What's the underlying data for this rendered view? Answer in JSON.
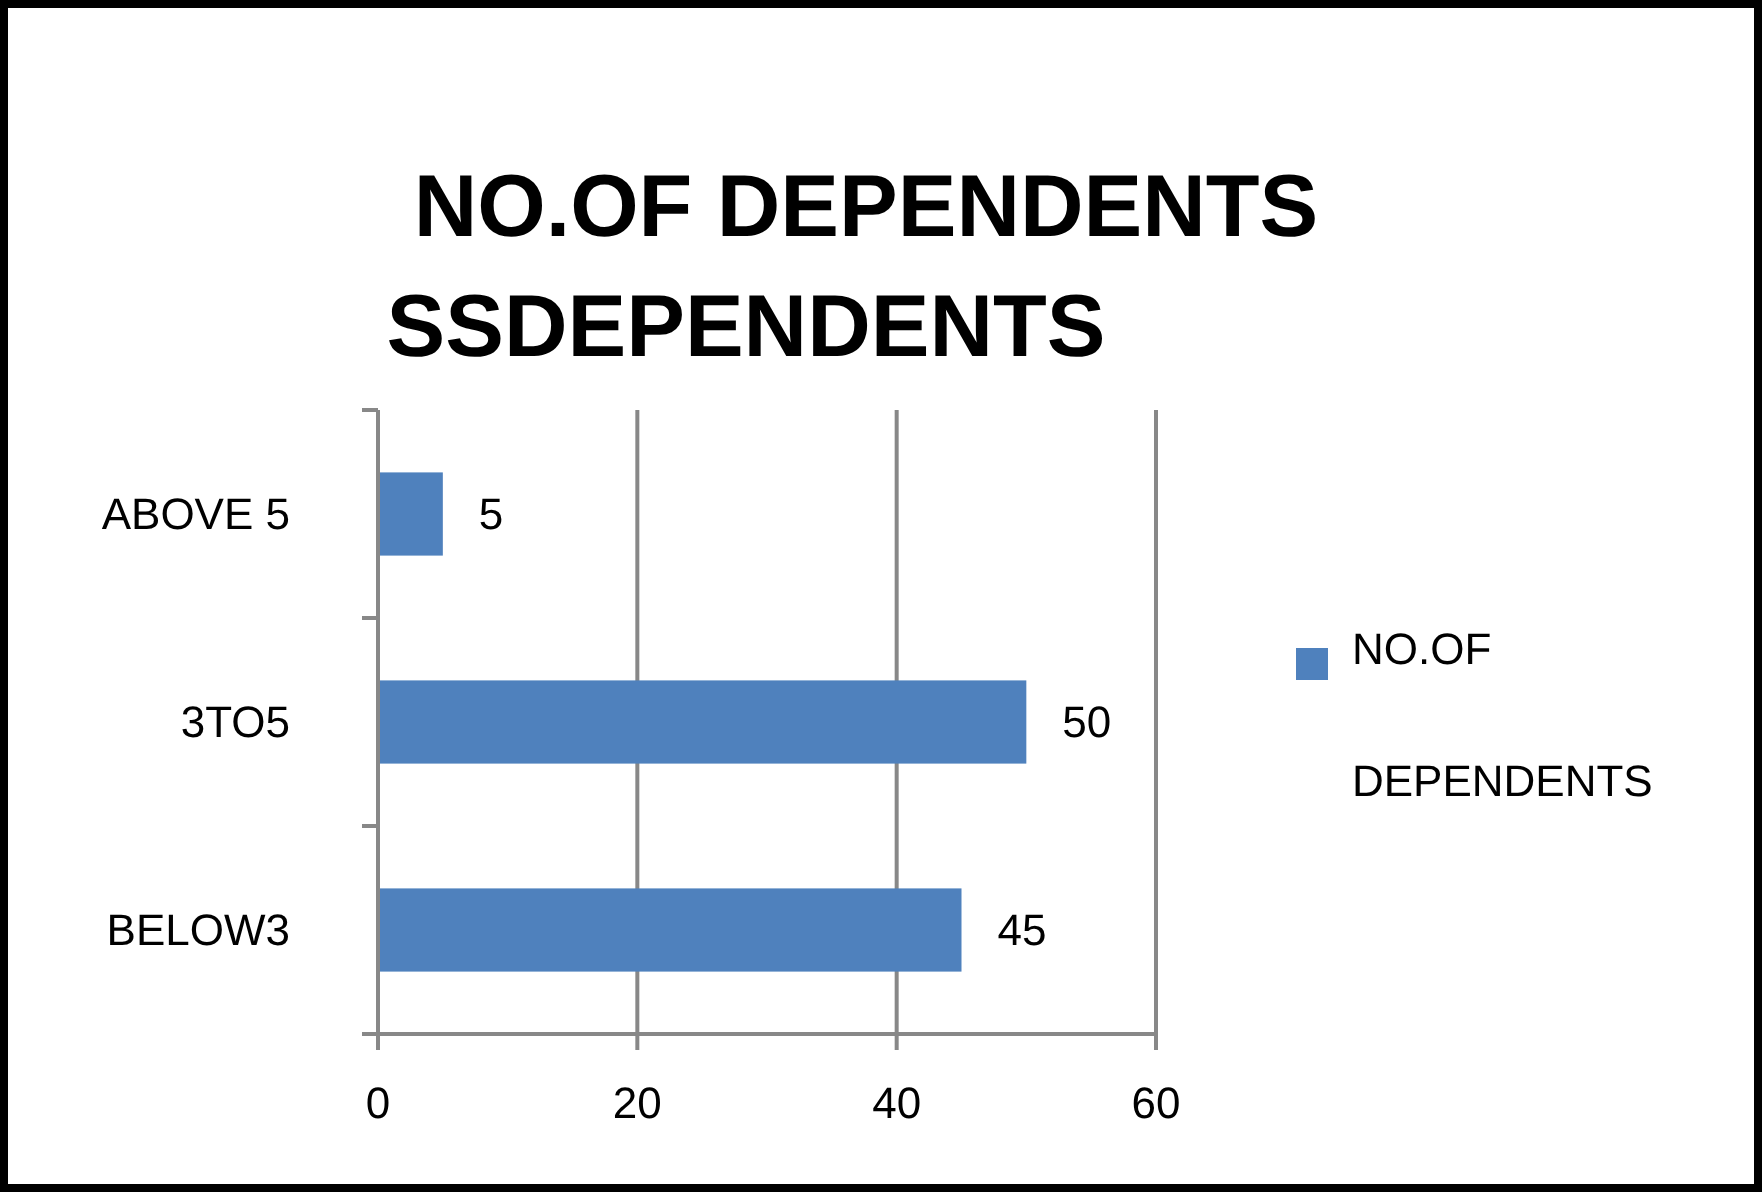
{
  "chart_data": {
    "type": "bar",
    "orientation": "horizontal",
    "title": "NO.OF DEPENDENTS",
    "subtitle": "SSDEPENDENTS",
    "categories": [
      "ABOVE 5",
      "3TO5",
      "BELOW3"
    ],
    "series": [
      {
        "name": "NO.OF DEPENDENTS",
        "color": "#4f81bd",
        "values": [
          5,
          50,
          45
        ]
      }
    ],
    "xlim": [
      0,
      60
    ],
    "xticks": [
      0,
      20,
      40,
      60
    ],
    "grid": "x",
    "data_labels": true,
    "legend": "right"
  }
}
